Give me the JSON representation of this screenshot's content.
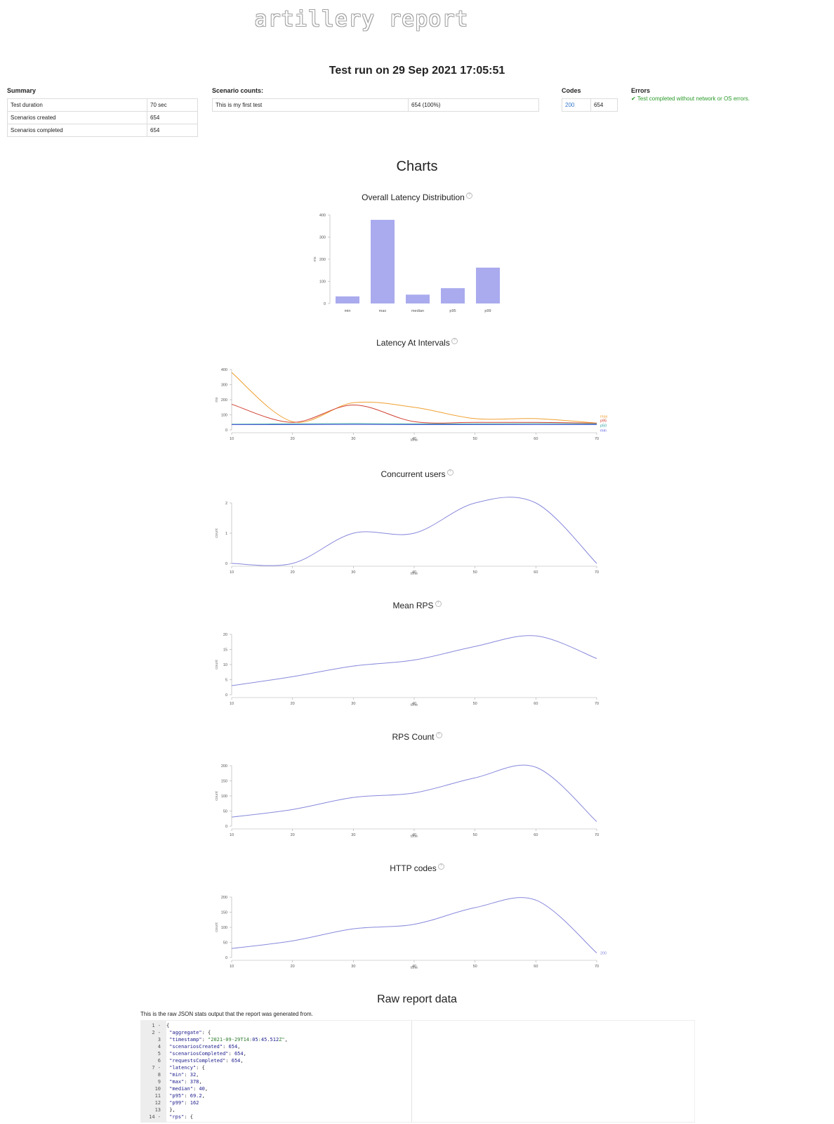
{
  "logo_text": "artillery report",
  "run_title": "Test run on 29 Sep 2021 17:05:51",
  "summary": {
    "label": "Summary",
    "rows": [
      {
        "name": "Test duration",
        "value": "70 sec"
      },
      {
        "name": "Scenarios created",
        "value": "654"
      },
      {
        "name": "Scenarios completed",
        "value": "654"
      }
    ]
  },
  "scenario_counts": {
    "label": "Scenario counts:",
    "rows": [
      {
        "name": "This is my first test",
        "value": "654 (100%)"
      }
    ]
  },
  "codes": {
    "label": "Codes",
    "rows": [
      {
        "code": "200",
        "count": "654"
      }
    ]
  },
  "errors": {
    "label": "Errors",
    "message": "✔ Test completed without network or OS errors."
  },
  "charts_heading": "Charts",
  "help_icon": "question-circle-icon",
  "chart_titles": {
    "overall": "Overall Latency Distribution",
    "intervals": "Latency At Intervals",
    "users": "Concurrent users",
    "mean_rps": "Mean RPS",
    "rps_count": "RPS Count",
    "http": "HTTP codes"
  },
  "chart_data": [
    {
      "id": "overall",
      "type": "bar",
      "title": "Overall Latency Distribution",
      "ylabel": "ms",
      "categories": [
        "min",
        "max",
        "median",
        "p95",
        "p99"
      ],
      "values": [
        32,
        378,
        40,
        69.2,
        162
      ],
      "ylim": [
        0,
        400
      ],
      "yticks": [
        0,
        100,
        200,
        300,
        400
      ],
      "color": "#aaaaee"
    },
    {
      "id": "intervals",
      "type": "line",
      "title": "Latency At Intervals",
      "ylabel": "ms",
      "xlabel": "time",
      "x": [
        10,
        20,
        30,
        40,
        50,
        60,
        70
      ],
      "xlim": [
        10,
        70
      ],
      "ylim": [
        0,
        400
      ],
      "yticks": [
        0,
        100,
        200,
        300,
        400
      ],
      "series": [
        {
          "name": "max",
          "color": "#f0a030",
          "values": [
            380,
            55,
            180,
            150,
            75,
            75,
            45
          ]
        },
        {
          "name": "p95",
          "color": "#d04030",
          "values": [
            170,
            50,
            165,
            55,
            50,
            50,
            45
          ]
        },
        {
          "name": "p50",
          "color": "#30a0a0",
          "values": [
            38,
            40,
            42,
            40,
            40,
            42,
            40
          ]
        },
        {
          "name": "min",
          "color": "#6060e0",
          "values": [
            35,
            35,
            36,
            35,
            35,
            35,
            35
          ]
        }
      ]
    },
    {
      "id": "users",
      "type": "line",
      "title": "Concurrent users",
      "ylabel": "count",
      "xlabel": "time",
      "x": [
        10,
        20,
        30,
        40,
        50,
        60,
        70
      ],
      "xlim": [
        10,
        70
      ],
      "ylim": [
        0,
        2
      ],
      "yticks": [
        0,
        1,
        2
      ],
      "series": [
        {
          "name": "",
          "color": "#8888dd",
          "values": [
            0,
            0,
            1,
            1,
            2,
            2,
            0
          ]
        }
      ]
    },
    {
      "id": "mean_rps",
      "type": "line",
      "title": "Mean RPS",
      "ylabel": "count",
      "xlabel": "time",
      "x": [
        10,
        20,
        30,
        40,
        50,
        60,
        70
      ],
      "xlim": [
        10,
        70
      ],
      "ylim": [
        0,
        20
      ],
      "yticks": [
        0,
        5,
        10,
        15,
        20
      ],
      "series": [
        {
          "name": "",
          "color": "#8888dd",
          "values": [
            3,
            6,
            9.5,
            11.5,
            16,
            19.5,
            12
          ]
        }
      ]
    },
    {
      "id": "rps_count",
      "type": "line",
      "title": "RPS Count",
      "ylabel": "count",
      "xlabel": "time",
      "x": [
        10,
        20,
        30,
        40,
        50,
        60,
        70
      ],
      "xlim": [
        10,
        70
      ],
      "ylim": [
        0,
        200
      ],
      "yticks": [
        0,
        50,
        100,
        150,
        200
      ],
      "series": [
        {
          "name": "",
          "color": "#8888dd",
          "values": [
            30,
            55,
            95,
            110,
            160,
            195,
            15
          ]
        }
      ]
    },
    {
      "id": "http",
      "type": "line",
      "title": "HTTP codes",
      "ylabel": "count",
      "xlabel": "time",
      "x": [
        10,
        20,
        30,
        40,
        50,
        60,
        70
      ],
      "xlim": [
        10,
        70
      ],
      "ylim": [
        0,
        200
      ],
      "yticks": [
        0,
        50,
        100,
        150,
        200
      ],
      "series": [
        {
          "name": "200",
          "color": "#8888dd",
          "values": [
            30,
            55,
            95,
            110,
            165,
            190,
            15
          ]
        }
      ]
    }
  ],
  "raw": {
    "heading": "Raw report data",
    "subtitle": "This is the raw JSON stats output that the report was generated from.",
    "lines": [
      {
        "n": "1 -",
        "text": "{"
      },
      {
        "n": "2 -",
        "text": "  \"aggregate\": {"
      },
      {
        "n": "3",
        "text": "    \"timestamp\": \"2021-09-29T14:05:45.512Z\","
      },
      {
        "n": "4",
        "text": "    \"scenariosCreated\": 654,"
      },
      {
        "n": "5",
        "text": "    \"scenariosCompleted\": 654,"
      },
      {
        "n": "6",
        "text": "    \"requestsCompleted\": 654,"
      },
      {
        "n": "7 -",
        "text": "    \"latency\": {"
      },
      {
        "n": "8",
        "text": "      \"min\": 32,"
      },
      {
        "n": "9",
        "text": "      \"max\": 378,"
      },
      {
        "n": "10",
        "text": "      \"median\": 40,"
      },
      {
        "n": "11",
        "text": "      \"p95\": 69.2,"
      },
      {
        "n": "12",
        "text": "      \"p99\": 162"
      },
      {
        "n": "13",
        "text": "    },"
      },
      {
        "n": "14 -",
        "text": "    \"rps\": {"
      }
    ]
  }
}
